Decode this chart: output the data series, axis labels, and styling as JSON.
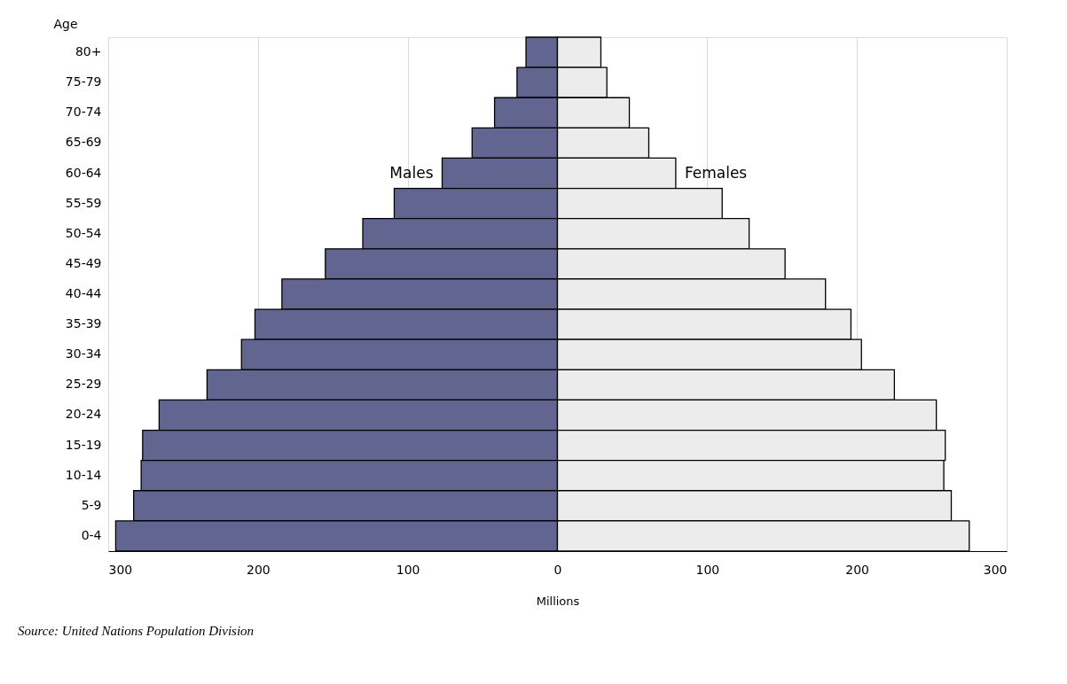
{
  "chart_data": {
    "type": "bar",
    "orientation": "horizontal",
    "stacked": true,
    "ylabel": "Age",
    "xlabel": "Millions",
    "categories": [
      "80+",
      "75-79",
      "70-74",
      "65-69",
      "60-64",
      "55-59",
      "50-54",
      "45-49",
      "40-44",
      "35-39",
      "30-34",
      "25-29",
      "20-24",
      "15-19",
      "10-14",
      "5-9",
      "0-4"
    ],
    "series": [
      {
        "name": "Males",
        "color": "#62658f",
        "values": [
          -21,
          -27,
          -42,
          -57,
          -77,
          -109,
          -130,
          -155,
          -184,
          -202,
          -211,
          -234,
          -266,
          -277,
          -278,
          -283,
          -295
        ]
      },
      {
        "name": "Females",
        "color": "#ececec",
        "values": [
          29,
          33,
          48,
          61,
          79,
          110,
          128,
          152,
          179,
          196,
          203,
          225,
          253,
          259,
          258,
          263,
          275
        ]
      }
    ],
    "xlim": [
      -300,
      300
    ],
    "xticks": [
      {
        "value": -300,
        "label": "300"
      },
      {
        "value": -200,
        "label": "200"
      },
      {
        "value": -100,
        "label": "100"
      },
      0,
      100,
      200,
      300
    ],
    "grid": "x",
    "legend": false,
    "annotations": [
      "Source: United Nations Population Division"
    ]
  }
}
